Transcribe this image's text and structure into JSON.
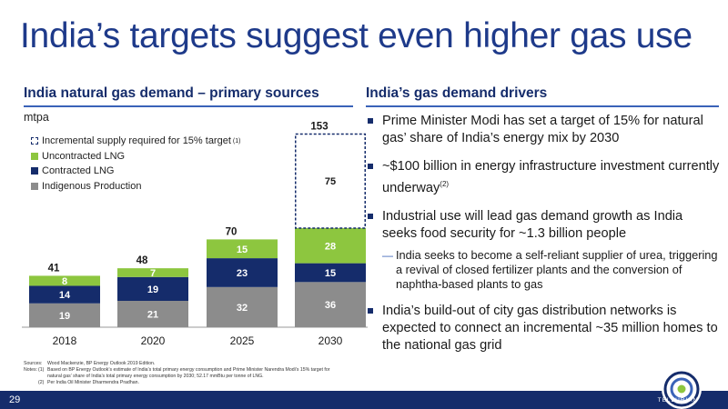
{
  "title": "India’s targets suggest even higher gas use",
  "left_heading": "India natural gas demand – primary sources",
  "right_heading": "India’s gas demand drivers",
  "unit": "mtpa",
  "legend": [
    {
      "label": "Incremental supply required for 15% target",
      "sup": "(1)",
      "style": "dashed",
      "color": "#152c6b"
    },
    {
      "label": "Uncontracted LNG",
      "color": "#8dc63f"
    },
    {
      "label": "Contracted LNG",
      "color": "#152c6b"
    },
    {
      "label": "Indigenous Production",
      "color": "#8c8c8c"
    }
  ],
  "chart_data": {
    "type": "bar",
    "stacked": true,
    "categories": [
      "2018",
      "2020",
      "2025",
      "2030"
    ],
    "series": [
      {
        "name": "Indigenous Production",
        "color": "#8c8c8c",
        "values": [
          19,
          21,
          32,
          36
        ]
      },
      {
        "name": "Contracted LNG",
        "color": "#152c6b",
        "values": [
          14,
          19,
          23,
          15
        ]
      },
      {
        "name": "Uncontracted LNG",
        "color": "#8dc63f",
        "values": [
          8,
          7,
          15,
          28
        ]
      },
      {
        "name": "Incremental supply required for 15% target",
        "color": "#152c6b",
        "style": "dashed",
        "values": [
          0,
          0,
          0,
          75
        ]
      }
    ],
    "totals": [
      41,
      48,
      70,
      153
    ],
    "ylim": [
      0,
      153
    ]
  },
  "bullets": [
    {
      "text": "Prime Minister Modi has set a target of 15% for natural gas’ share of India’s energy mix by 2030",
      "sup": ""
    },
    {
      "text": "~$100 billion in energy infrastructure investment currently underway",
      "sup": "(2)"
    },
    {
      "text": "Industrial use will lead gas demand growth as India seeks food security for ~1.3 billion people",
      "sup": ""
    },
    {
      "text": "India’s build-out of city gas distribution networks is expected to connect an incremental ~35 million homes to the national gas grid",
      "sup": ""
    }
  ],
  "sub_bullet": "India seeks to become a self-reliant supplier of urea, triggering a revival of closed fertilizer plants and the conversion of naphtha-based plants to gas",
  "footnotes": {
    "sources_label": "Sources:",
    "sources_text": "Wood Mackenzie, BP Energy Outlook 2019 Edition.",
    "notes_label": "Notes:",
    "note1_num": "(1)",
    "note1_text": "Based on BP Energy Outlook’s estimate of India’s total primary energy consumption and Prime Minister Narendra Modi’s 15% target for",
    "note1_text2": "natural gas’ share of India’s total primary energy consumption by 2030; 52.17 mmBtu per tonne of LNG.",
    "note2_num": "(2)",
    "note2_text": "Per India Oil Minister Dharmendra Pradhan."
  },
  "page_number": "29",
  "logo_text": "TELLURIAN"
}
